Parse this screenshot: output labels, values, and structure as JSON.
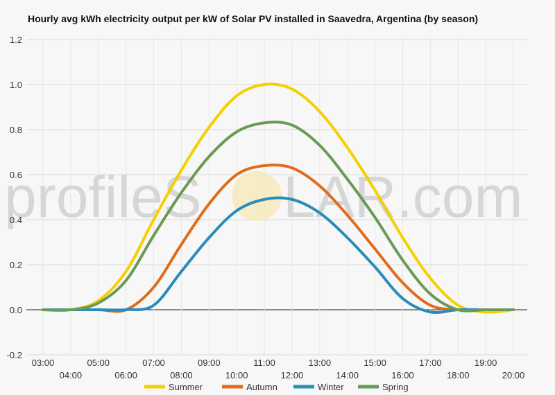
{
  "chart_data": {
    "type": "line",
    "title": "Hourly avg kWh electricity output per kW of Solar PV installed in Saavedra, Argentina (by season)",
    "xlabel": "",
    "ylabel": "",
    "x": [
      "03:00",
      "04:00",
      "05:00",
      "06:00",
      "07:00",
      "08:00",
      "09:00",
      "10:00",
      "11:00",
      "12:00",
      "13:00",
      "14:00",
      "15:00",
      "16:00",
      "17:00",
      "18:00",
      "19:00",
      "20:00"
    ],
    "ylim": [
      -0.2,
      1.2
    ],
    "yticks": [
      "1.2",
      "1.0",
      "0.8",
      "0.6",
      "0.4",
      "0.2",
      "0.0",
      "-0.2"
    ],
    "grid": true,
    "legend_position": "bottom",
    "series": [
      {
        "name": "Summer",
        "color": "#f5d000",
        "values": [
          0.0,
          0.0,
          0.04,
          0.17,
          0.4,
          0.62,
          0.81,
          0.95,
          1.0,
          0.98,
          0.88,
          0.72,
          0.53,
          0.32,
          0.14,
          0.02,
          -0.01,
          0.0
        ]
      },
      {
        "name": "Autumn",
        "color": "#e06c1a",
        "values": [
          0.0,
          0.0,
          0.0,
          0.0,
          0.1,
          0.29,
          0.47,
          0.6,
          0.64,
          0.63,
          0.55,
          0.42,
          0.27,
          0.12,
          0.02,
          0.0,
          0.0,
          0.0
        ]
      },
      {
        "name": "Winter",
        "color": "#2a8cb8",
        "values": [
          0.0,
          0.0,
          0.0,
          0.0,
          0.02,
          0.17,
          0.32,
          0.44,
          0.49,
          0.49,
          0.43,
          0.32,
          0.19,
          0.05,
          -0.01,
          0.0,
          0.0,
          0.0
        ]
      },
      {
        "name": "Spring",
        "color": "#6a9a55",
        "values": [
          0.0,
          0.0,
          0.03,
          0.13,
          0.33,
          0.52,
          0.68,
          0.79,
          0.83,
          0.82,
          0.73,
          0.58,
          0.41,
          0.22,
          0.07,
          0.0,
          0.0,
          0.0
        ]
      }
    ]
  },
  "watermark": {
    "left": "profileS",
    "right": "LAR.com"
  }
}
